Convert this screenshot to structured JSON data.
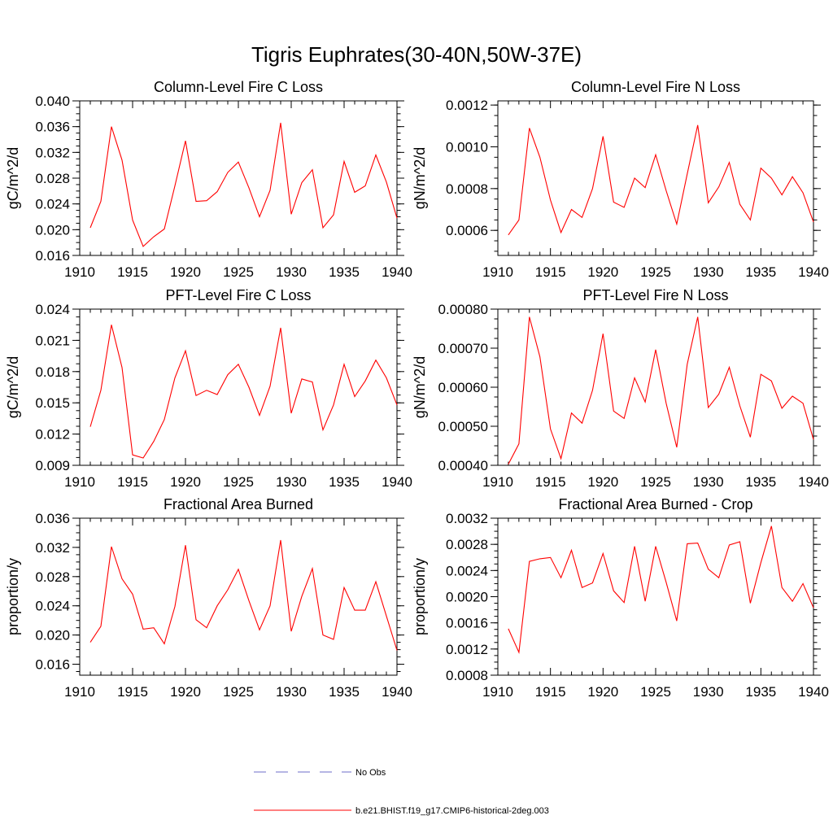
{
  "figure_title": "Tigris Euphrates(30-40N,50W-37E)",
  "colors": {
    "model_line": "#ff0000",
    "obs_line": "#6c6cc8",
    "axes": "#000000"
  },
  "legend": {
    "items": [
      {
        "label": "No Obs",
        "style": "dashed",
        "color": "#6c6cc8"
      },
      {
        "label": "b.e21.BHIST.f19_g17.CMIP6-historical-2deg.003",
        "style": "solid",
        "color": "#ff0000"
      }
    ]
  },
  "chart_data": [
    {
      "type": "line",
      "title": "Column-Level Fire C Loss",
      "ylabel": "gC/m^2/d",
      "xlim": [
        1910,
        1940
      ],
      "ylim": [
        0.016,
        0.04
      ],
      "x_ticks": [
        "1910",
        "1915",
        "1920",
        "1925",
        "1930",
        "1935",
        "1940"
      ],
      "y_ticks": [
        "0.016",
        "0.020",
        "0.024",
        "0.028",
        "0.032",
        "0.036",
        "0.040"
      ],
      "series": [
        {
          "x": [
            1911,
            1912,
            1913,
            1914,
            1915,
            1916,
            1917,
            1918,
            1919,
            1920,
            1921,
            1922,
            1923,
            1924,
            1925,
            1926,
            1927,
            1928,
            1929,
            1930,
            1931,
            1932,
            1933,
            1934,
            1935,
            1936,
            1937,
            1938,
            1939,
            1940
          ],
          "values": [
            0.0203,
            0.0244,
            0.036,
            0.0308,
            0.0215,
            0.0174,
            0.0189,
            0.0201,
            0.0268,
            0.0338,
            0.0244,
            0.0245,
            0.0259,
            0.0289,
            0.0305,
            0.0265,
            0.022,
            0.0261,
            0.0366,
            0.0224,
            0.0273,
            0.0293,
            0.0203,
            0.0223,
            0.0306,
            0.0258,
            0.0268,
            0.0316,
            0.0274,
            0.0218
          ]
        }
      ]
    },
    {
      "type": "line",
      "title": "Column-Level Fire N Loss",
      "ylabel": "gN/m^2/d",
      "xlim": [
        1910,
        1940
      ],
      "ylim": [
        0.00048,
        0.00122
      ],
      "x_ticks": [
        "1910",
        "1915",
        "1920",
        "1925",
        "1930",
        "1935",
        "1940"
      ],
      "y_ticks": [
        "0.0006",
        "0.0008",
        "0.0010",
        "0.0012"
      ],
      "series": [
        {
          "x": [
            1911,
            1912,
            1913,
            1914,
            1915,
            1916,
            1917,
            1918,
            1919,
            1920,
            1921,
            1922,
            1923,
            1924,
            1925,
            1926,
            1927,
            1928,
            1929,
            1930,
            1931,
            1932,
            1933,
            1934,
            1935,
            1936,
            1937,
            1938,
            1939,
            1940
          ],
          "values": [
            0.000578,
            0.00065,
            0.00109,
            0.00095,
            0.000745,
            0.00059,
            0.0007,
            0.000662,
            0.0008,
            0.00105,
            0.000735,
            0.00071,
            0.00085,
            0.000805,
            0.000962,
            0.00079,
            0.00063,
            0.00087,
            0.001104,
            0.000732,
            0.000808,
            0.000925,
            0.000725,
            0.00065,
            0.000898,
            0.00085,
            0.00077,
            0.000857,
            0.00078,
            0.00064
          ]
        }
      ]
    },
    {
      "type": "line",
      "title": "PFT-Level Fire C Loss",
      "ylabel": "gC/m^2/d",
      "xlim": [
        1910,
        1940
      ],
      "ylim": [
        0.009,
        0.024
      ],
      "x_ticks": [
        "1910",
        "1915",
        "1920",
        "1925",
        "1930",
        "1935",
        "1940"
      ],
      "y_ticks": [
        "0.009",
        "0.012",
        "0.015",
        "0.018",
        "0.021",
        "0.024"
      ],
      "series": [
        {
          "x": [
            1911,
            1912,
            1913,
            1914,
            1915,
            1916,
            1917,
            1918,
            1919,
            1920,
            1921,
            1922,
            1923,
            1924,
            1925,
            1926,
            1927,
            1928,
            1929,
            1930,
            1931,
            1932,
            1933,
            1934,
            1935,
            1936,
            1937,
            1938,
            1939,
            1940
          ],
          "values": [
            0.0127,
            0.0162,
            0.0225,
            0.0184,
            0.01,
            0.0097,
            0.0113,
            0.0134,
            0.0174,
            0.02,
            0.0157,
            0.0162,
            0.0158,
            0.0177,
            0.0187,
            0.0165,
            0.0138,
            0.0166,
            0.0222,
            0.014,
            0.0173,
            0.017,
            0.0124,
            0.0148,
            0.0187,
            0.0156,
            0.0171,
            0.0191,
            0.0174,
            0.0148
          ]
        }
      ]
    },
    {
      "type": "line",
      "title": "PFT-Level Fire N Loss",
      "ylabel": "gN/m^2/d",
      "xlim": [
        1910,
        1940
      ],
      "ylim": [
        0.0004,
        0.0008
      ],
      "x_ticks": [
        "1910",
        "1915",
        "1920",
        "1925",
        "1930",
        "1935",
        "1940"
      ],
      "y_ticks": [
        "0.00040",
        "0.00050",
        "0.00060",
        "0.00070",
        "0.00080"
      ],
      "series": [
        {
          "x": [
            1911,
            1912,
            1913,
            1914,
            1915,
            1916,
            1917,
            1918,
            1919,
            1920,
            1921,
            1922,
            1923,
            1924,
            1925,
            1926,
            1927,
            1928,
            1929,
            1930,
            1931,
            1932,
            1933,
            1934,
            1935,
            1936,
            1937,
            1938,
            1939,
            1940
          ],
          "values": [
            0.000403,
            0.000455,
            0.00078,
            0.000678,
            0.000493,
            0.000417,
            0.000534,
            0.000508,
            0.000592,
            0.000737,
            0.000539,
            0.00052,
            0.000624,
            0.000562,
            0.000696,
            0.000559,
            0.000446,
            0.000659,
            0.00078,
            0.000548,
            0.000582,
            0.000651,
            0.000552,
            0.000472,
            0.000633,
            0.000616,
            0.000546,
            0.000577,
            0.000559,
            0.000466
          ]
        }
      ]
    },
    {
      "type": "line",
      "title": "Fractional Area Burned",
      "ylabel": "proportion/y",
      "xlim": [
        1910,
        1940
      ],
      "ylim": [
        0.0145,
        0.036
      ],
      "x_ticks": [
        "1910",
        "1915",
        "1920",
        "1925",
        "1930",
        "1935",
        "1940"
      ],
      "y_ticks": [
        "0.016",
        "0.020",
        "0.024",
        "0.028",
        "0.032",
        "0.036"
      ],
      "series": [
        {
          "x": [
            1911,
            1912,
            1913,
            1914,
            1915,
            1916,
            1917,
            1918,
            1919,
            1920,
            1921,
            1922,
            1923,
            1924,
            1925,
            1926,
            1927,
            1928,
            1929,
            1930,
            1931,
            1932,
            1933,
            1934,
            1935,
            1936,
            1937,
            1938,
            1939,
            1940
          ],
          "values": [
            0.019,
            0.0212,
            0.0321,
            0.0277,
            0.0256,
            0.0208,
            0.021,
            0.0188,
            0.0239,
            0.0323,
            0.0221,
            0.021,
            0.024,
            0.0262,
            0.029,
            0.0247,
            0.0207,
            0.024,
            0.033,
            0.0205,
            0.0253,
            0.0291,
            0.02,
            0.0194,
            0.0265,
            0.0234,
            0.0234,
            0.0273,
            0.0226,
            0.0179
          ]
        }
      ]
    },
    {
      "type": "line",
      "title": "Fractional Area Burned - Crop",
      "ylabel": "proportion/y",
      "xlim": [
        1910,
        1940
      ],
      "ylim": [
        0.0008,
        0.0032
      ],
      "x_ticks": [
        "1910",
        "1915",
        "1920",
        "1925",
        "1930",
        "1935",
        "1940"
      ],
      "y_ticks": [
        "0.0008",
        "0.0012",
        "0.0016",
        "0.0020",
        "0.0024",
        "0.0028",
        "0.0032"
      ],
      "series": [
        {
          "x": [
            1911,
            1912,
            1913,
            1914,
            1915,
            1916,
            1917,
            1918,
            1919,
            1920,
            1921,
            1922,
            1923,
            1924,
            1925,
            1926,
            1927,
            1928,
            1929,
            1930,
            1931,
            1932,
            1933,
            1934,
            1935,
            1936,
            1937,
            1938,
            1939,
            1940
          ],
          "values": [
            0.00151,
            0.00115,
            0.00254,
            0.00258,
            0.0026,
            0.00229,
            0.00271,
            0.00214,
            0.00221,
            0.00266,
            0.00209,
            0.00191,
            0.00277,
            0.00193,
            0.00277,
            0.00222,
            0.00163,
            0.00281,
            0.00282,
            0.00242,
            0.00229,
            0.00279,
            0.00284,
            0.0019,
            0.00252,
            0.00308,
            0.00214,
            0.00193,
            0.0022,
            0.00183
          ]
        }
      ]
    }
  ]
}
